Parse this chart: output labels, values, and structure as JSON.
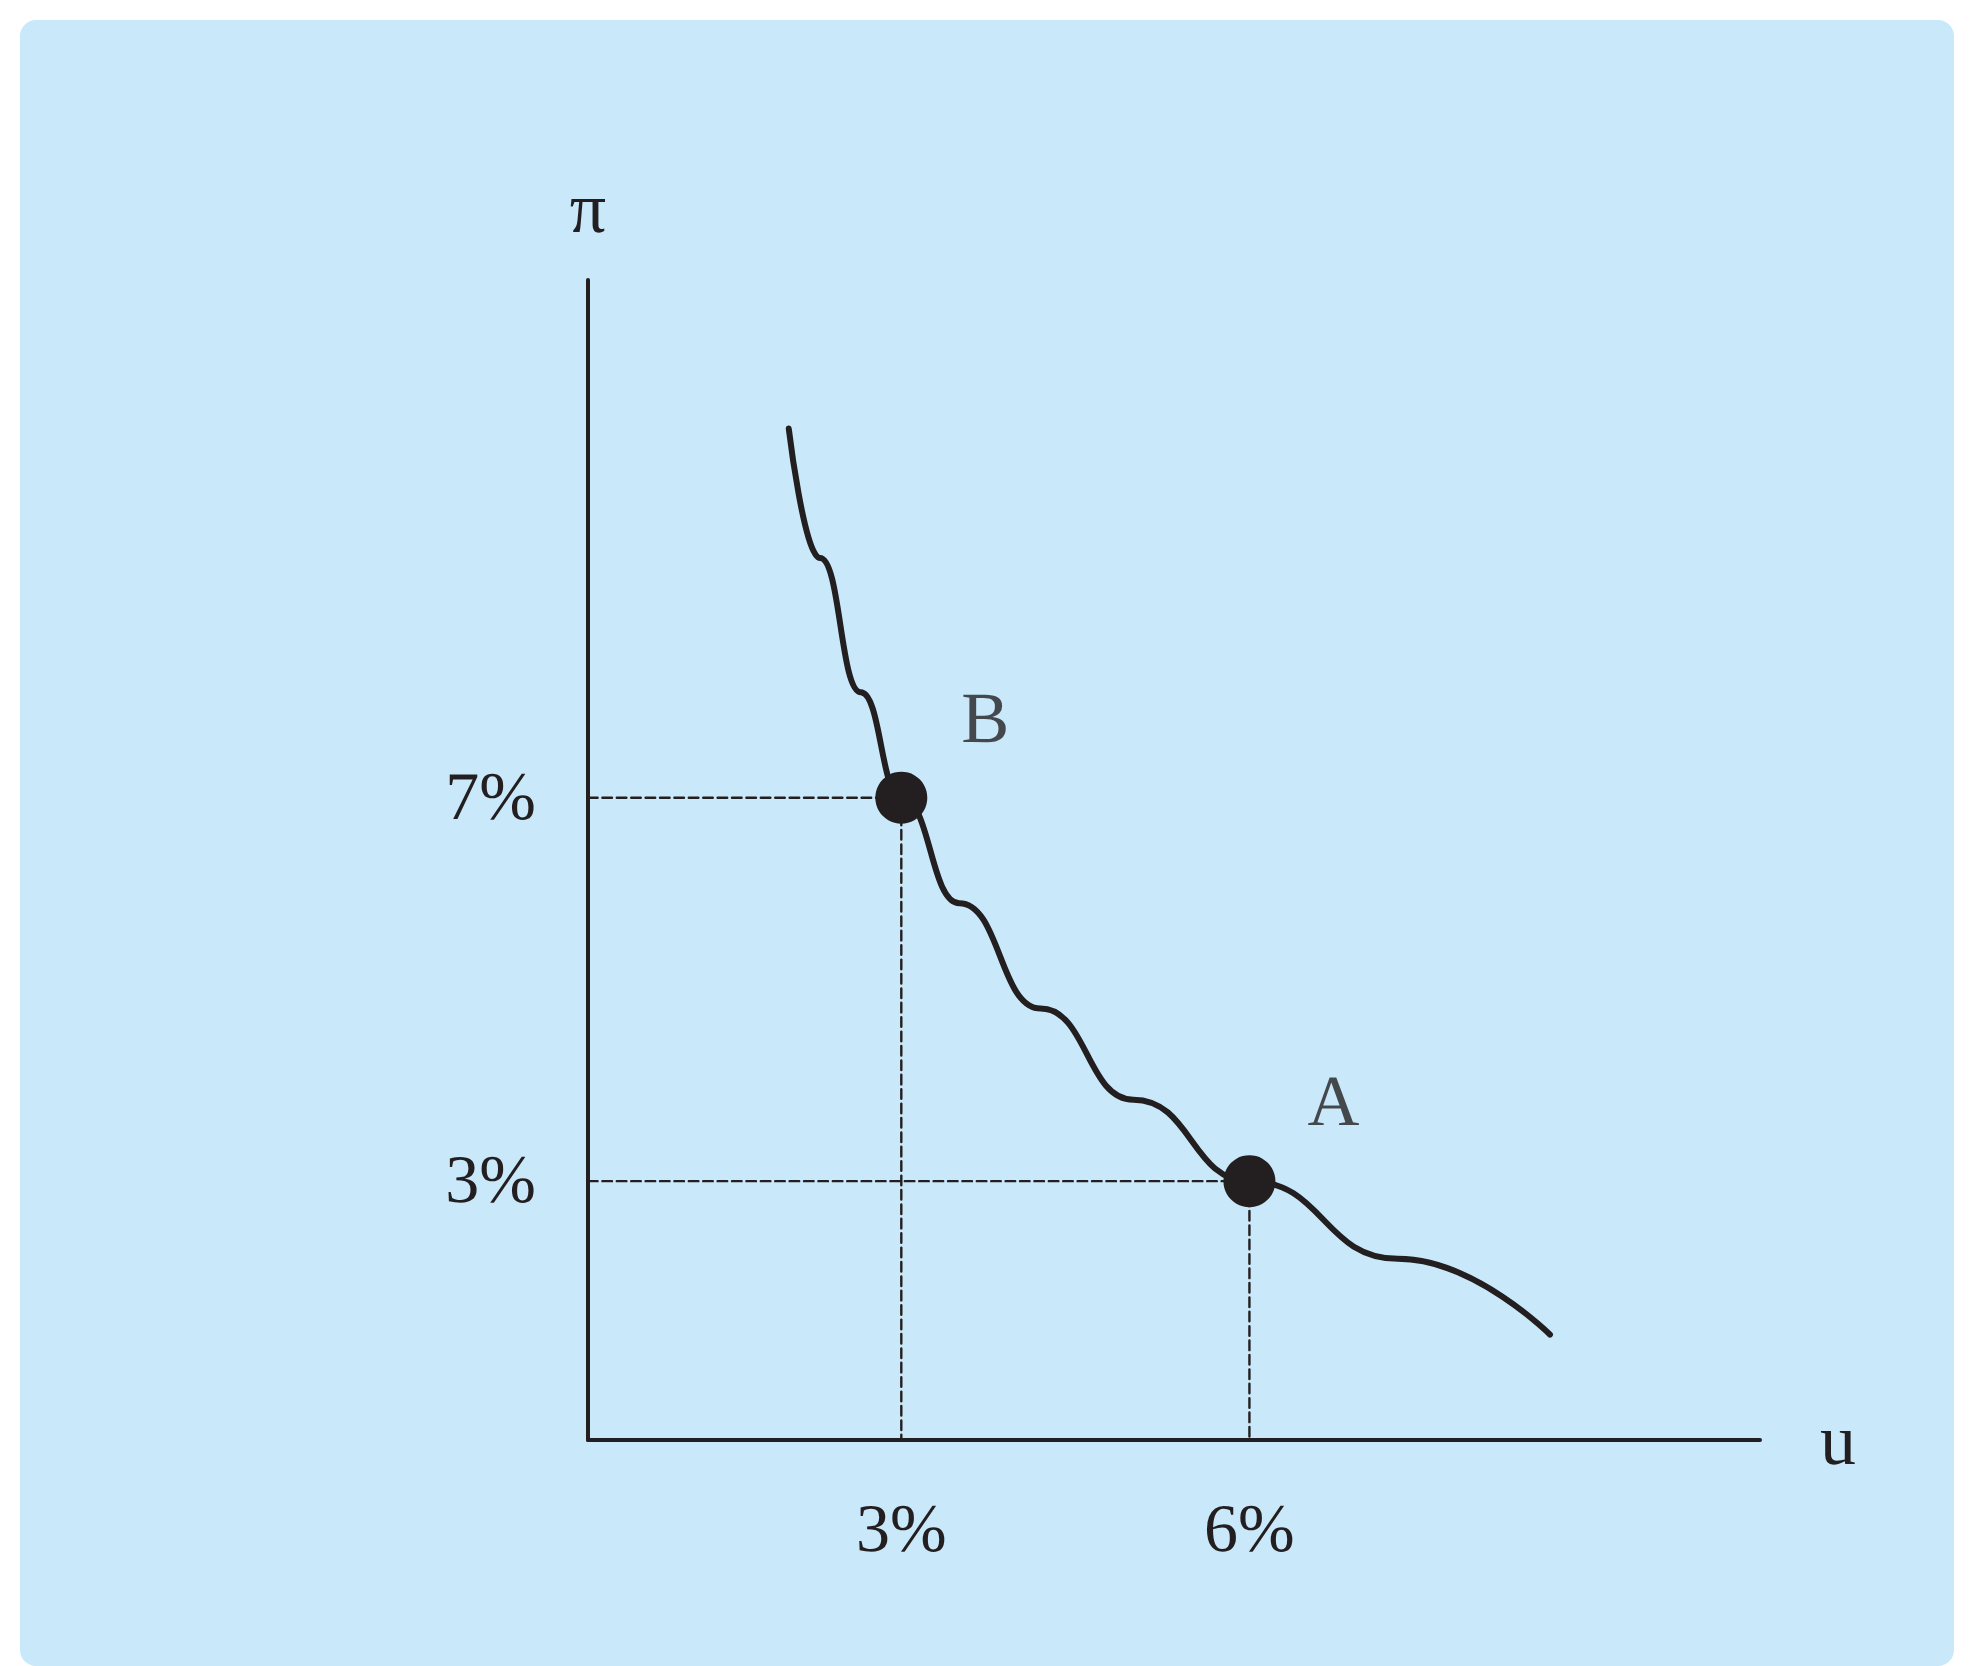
{
  "chart_data": {
    "type": "line",
    "xlabel": "u",
    "ylabel": "π",
    "xlim": [
      0.3,
      10.4
    ],
    "ylim": [
      0.3,
      12.4
    ],
    "xticks": [
      {
        "value": 3,
        "label": "3%"
      },
      {
        "value": 6,
        "label": "6%"
      }
    ],
    "yticks": [
      {
        "value": 3,
        "label": "3%"
      },
      {
        "value": 7,
        "label": "7%"
      }
    ],
    "grid": false,
    "series": [
      {
        "color": "#231f20",
        "marker": "none",
        "line_style": "solid",
        "x": [
          2.03,
          2.3,
          2.65,
          3.0,
          3.5,
          4.2,
          5.0,
          6.0,
          7.28,
          8.59
        ],
        "values": [
          10.85,
          9.5,
          8.1,
          7.0,
          5.9,
          4.8,
          3.85,
          3.0,
          2.19,
          1.4
        ]
      },
      {
        "color": "#231f20",
        "marker": "none",
        "line_style": "dashed",
        "x": [
          0.3,
          3,
          3
        ],
        "values": [
          7,
          7,
          0.3
        ]
      },
      {
        "color": "#231f20",
        "marker": "none",
        "line_style": "dashed",
        "x": [
          0.3,
          6,
          6
        ],
        "values": [
          3,
          3,
          0.3
        ]
      },
      {
        "type": "scatter",
        "color": "#231f20",
        "marker": "circle",
        "x": [
          3,
          6
        ],
        "values": [
          7,
          3
        ]
      }
    ],
    "annotations": [
      {
        "text": "B",
        "x": 3,
        "y": 7
      },
      {
        "text": "A",
        "x": 6,
        "y": 3
      }
    ]
  }
}
